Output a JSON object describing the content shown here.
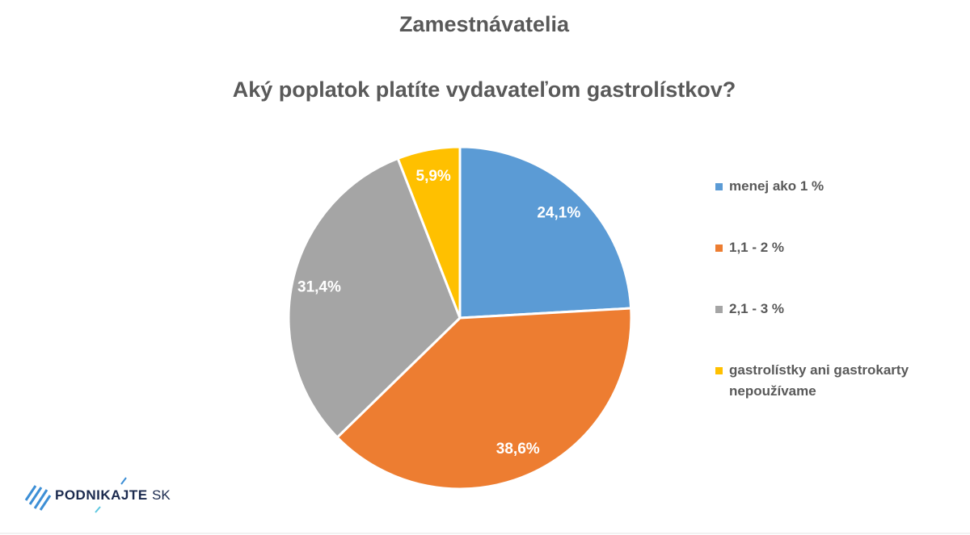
{
  "chart_data": {
    "type": "pie",
    "title": "Zamestnávatelia",
    "subtitle": "Aký poplatok platíte vydavateľom gastrolístkov?",
    "categories": [
      "menej ako 1 %",
      "1,1 - 2 %",
      "2,1 - 3 %",
      "gastrolístky ani gastrokarty nepoužívame"
    ],
    "values": [
      24.1,
      38.6,
      31.4,
      5.9
    ],
    "value_labels": [
      "24,1%",
      "38,6%",
      "31,4%",
      "5,9%"
    ],
    "colors": [
      "#5b9bd5",
      "#ed7d31",
      "#a5a5a5",
      "#ffc000"
    ],
    "legend": "right"
  },
  "logo": {
    "name": "PODNIKAJTE",
    "suffix": "SK"
  }
}
